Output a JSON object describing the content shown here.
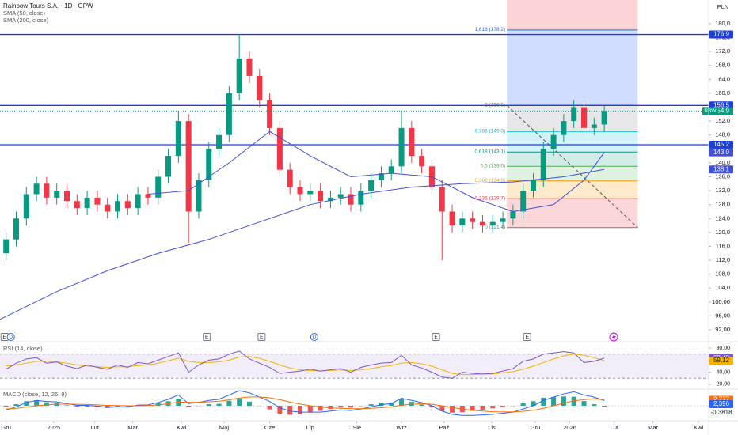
{
  "header": {
    "title": "Rainbow Tours S.A. · 1D · GPW",
    "indicators": [
      "SMA (50, close)",
      "SMA (200, close)"
    ],
    "currency": "PLN"
  },
  "chart_data": {
    "type": "candlestick",
    "up_color": "#089981",
    "down_color": "#f23645",
    "xlim": [
      -0.6,
      69.3
    ],
    "ylim": [
      88.6,
      186.8
    ],
    "x": [
      0,
      1,
      2,
      3,
      4,
      5,
      6,
      7,
      8,
      9,
      10,
      11,
      12,
      13,
      14,
      15,
      16,
      17,
      18,
      19,
      20,
      21,
      22,
      23,
      24,
      25,
      26,
      27,
      28,
      29,
      30,
      31,
      32,
      33,
      34,
      35,
      36,
      37,
      38,
      39,
      40,
      41,
      42,
      43,
      44,
      45,
      46,
      47,
      48,
      49,
      50,
      51,
      52,
      53,
      54,
      55,
      56,
      57,
      58,
      59
    ],
    "open": [
      114,
      118,
      124,
      131,
      134,
      130,
      132,
      129,
      127,
      130,
      128,
      126,
      129,
      127,
      131,
      130,
      136,
      142,
      152,
      126,
      135,
      144,
      148,
      160,
      170,
      165,
      158,
      150,
      138,
      133,
      131,
      132,
      129,
      130,
      131,
      128,
      132,
      135,
      137,
      139,
      150,
      142,
      139,
      133,
      126,
      122,
      124,
      123,
      122,
      123,
      124,
      126,
      132,
      135,
      144,
      148,
      152,
      156,
      150,
      151
    ],
    "high": [
      120,
      126,
      133,
      136,
      136,
      134,
      134,
      131,
      132,
      132,
      130,
      131,
      131,
      133,
      133,
      138,
      144,
      155,
      154,
      137,
      146,
      150,
      162,
      177,
      172,
      167,
      160,
      152,
      140,
      135,
      134,
      134,
      132,
      133,
      133,
      134,
      137,
      139,
      141,
      155,
      152,
      144,
      141,
      135,
      128,
      126,
      126,
      125,
      125,
      126,
      128,
      134,
      137,
      146,
      150,
      154,
      158,
      158,
      153,
      156.5
    ],
    "low": [
      112,
      116,
      122,
      129,
      128,
      128,
      127,
      125,
      125,
      126,
      124,
      124,
      125,
      125,
      128,
      128,
      134,
      140,
      117,
      124,
      133,
      142,
      146,
      158,
      163,
      156,
      148,
      136,
      131,
      129,
      129,
      127,
      127,
      128,
      126,
      126,
      130,
      133,
      135,
      137,
      140,
      137,
      131,
      112,
      120,
      120,
      121,
      120,
      120,
      121,
      122,
      124,
      130,
      133,
      142,
      146,
      150,
      148,
      148,
      149
    ],
    "close": [
      118,
      124,
      131,
      134,
      130,
      132,
      129,
      127,
      130,
      128,
      126,
      129,
      127,
      131,
      130,
      136,
      142,
      152,
      126,
      135,
      144,
      148,
      160,
      170,
      165,
      158,
      150,
      138,
      133,
      131,
      132,
      129,
      130,
      131,
      128,
      132,
      135,
      137,
      139,
      150,
      142,
      139,
      133,
      126,
      122,
      124,
      123,
      122,
      123,
      124,
      126,
      132,
      135,
      144,
      148,
      152,
      156,
      150,
      151,
      154.9
    ],
    "last": {
      "value": 154.9,
      "label": "154,9",
      "ticker": "RBW",
      "color": "#089981"
    },
    "yticks": [
      {
        "value": 180,
        "label": "180,0"
      },
      {
        "value": 176,
        "label": "176,0"
      },
      {
        "value": 172,
        "label": "172,0"
      },
      {
        "value": 168,
        "label": "168,0"
      },
      {
        "value": 164,
        "label": "164,0"
      },
      {
        "value": 160,
        "label": "160,0"
      },
      {
        "value": 156,
        "label": "156,0"
      },
      {
        "value": 152,
        "label": "152,0"
      },
      {
        "value": 148,
        "label": "148,0"
      },
      {
        "value": 144,
        "label": "144,0"
      },
      {
        "value": 140,
        "label": "140,0"
      },
      {
        "value": 136,
        "label": "136,0"
      },
      {
        "value": 132,
        "label": "132,0"
      },
      {
        "value": 128,
        "label": "128,0"
      },
      {
        "value": 124,
        "label": "124,0"
      },
      {
        "value": 120,
        "label": "120,0"
      },
      {
        "value": 116,
        "label": "116,0"
      },
      {
        "value": 112,
        "label": "112,0"
      },
      {
        "value": 108,
        "label": "108,0"
      },
      {
        "value": 104,
        "label": "104,0"
      },
      {
        "value": 100,
        "label": "100,00"
      },
      {
        "value": 96,
        "label": "96,00"
      },
      {
        "value": 92,
        "label": "92,00"
      }
    ],
    "xticks": [
      {
        "value": 0,
        "label": "Gru"
      },
      {
        "value": 4.7,
        "label": "2025"
      },
      {
        "value": 8.75,
        "label": "Lut"
      },
      {
        "value": 12.5,
        "label": "Mar"
      },
      {
        "value": 17.3,
        "label": "Kwi"
      },
      {
        "value": 21.5,
        "label": "Maj"
      },
      {
        "value": 26,
        "label": "Cze"
      },
      {
        "value": 30,
        "label": "Lip"
      },
      {
        "value": 34.6,
        "label": "Sie"
      },
      {
        "value": 39,
        "label": "Wrz"
      },
      {
        "value": 43.2,
        "label": "Paź"
      },
      {
        "value": 47.9,
        "label": "Lis"
      },
      {
        "value": 52.2,
        "label": "Gru"
      },
      {
        "value": 55.6,
        "label": "2026"
      },
      {
        "value": 60,
        "label": "Lut"
      },
      {
        "value": 63.8,
        "label": "Mar"
      },
      {
        "value": 68.3,
        "label": "Kwi"
      }
    ],
    "series": [
      {
        "name": "SMA (50, close)",
        "color": "#3f51d8",
        "x": [
          14,
          18,
          22,
          26,
          30,
          34,
          38,
          42,
          46,
          50,
          54,
          57,
          59
        ],
        "values": [
          131,
          132,
          140,
          149,
          142,
          136,
          137,
          136,
          130,
          126,
          128,
          135,
          143.0
        ],
        "last_label": "143,0"
      },
      {
        "name": "SMA (200, close)",
        "color": "#3f51d8",
        "x": [
          -0.6,
          5,
          10,
          15,
          20,
          25,
          30,
          35,
          40,
          45,
          50,
          55,
          59
        ],
        "values": [
          95,
          103,
          109,
          114,
          118,
          123,
          128,
          131,
          133,
          134,
          134.5,
          136,
          138.1
        ],
        "last_label": "138,1"
      }
    ],
    "hlines": [
      {
        "value": 176.9,
        "label": "176,9"
      },
      {
        "value": 156.5,
        "label": "156,5"
      },
      {
        "value": 145.2,
        "label": "145,2"
      }
    ],
    "hline_color": "#1e3fd6",
    "fib": {
      "start": 49.4,
      "end": 62.3,
      "top_fill": "rgba(242,54,69,0.22)",
      "levels": [
        {
          "value": 178.2,
          "label": "1,618 (178,2)",
          "color": "#2962ff",
          "fill": "rgba(41,98,255,0.22)"
        },
        {
          "value": 156.5,
          "label": "1 (156,5)",
          "color": "#787b86",
          "fill": "rgba(120,123,134,0.18)"
        },
        {
          "value": 149.0,
          "label": "0,786 (149,0)",
          "color": "#00bcd4",
          "fill": "rgba(0,188,212,0.18)"
        },
        {
          "value": 143.1,
          "label": "0,618 (143,1)",
          "color": "#089981",
          "fill": "rgba(8,153,129,0.18)"
        },
        {
          "value": 139.0,
          "label": "0,5 (139,0)",
          "color": "#4caf50",
          "fill": "rgba(76,175,80,0.18)"
        },
        {
          "value": 134.8,
          "label": "0,382 (134,8)",
          "color": "#ff9800",
          "fill": "rgba(255,152,0,0.2)"
        },
        {
          "value": 129.7,
          "label": "0,236 (129,7)",
          "color": "#f23645",
          "fill": "rgba(242,54,69,0.2)"
        },
        {
          "value": 121.4,
          "label": "0 (121,4)",
          "color": "#787b86",
          "fill": "none"
        }
      ]
    },
    "events": [
      {
        "x": -0.15,
        "label": "E"
      },
      {
        "x": 0.47,
        "label": "D"
      },
      {
        "x": 19.8,
        "label": "E"
      },
      {
        "x": 25.2,
        "label": "E"
      },
      {
        "x": 30.4,
        "label": "D"
      },
      {
        "x": 42.4,
        "label": "E"
      },
      {
        "x": 51.4,
        "label": "E"
      }
    ],
    "rsi": {
      "title": "RSI (14, close)",
      "ylim": [
        12,
        88
      ],
      "band": [
        30,
        70
      ],
      "yticks": [
        {
          "value": 80,
          "label": "80,00"
        },
        {
          "value": 60,
          "label": "60,00"
        },
        {
          "value": 40,
          "label": "40,00"
        },
        {
          "value": 20,
          "label": "20,00"
        }
      ],
      "series": [
        {
          "name": "RSI",
          "color": "#7e57c2",
          "last_label": "63,43",
          "values": [
            45,
            55,
            62,
            64,
            55,
            57,
            50,
            46,
            52,
            48,
            45,
            52,
            48,
            56,
            54,
            60,
            66,
            72,
            40,
            52,
            60,
            62,
            70,
            75,
            62,
            55,
            48,
            38,
            40,
            42,
            45,
            42,
            44,
            46,
            40,
            48,
            52,
            55,
            56,
            68,
            52,
            47,
            40,
            32,
            30,
            40,
            38,
            37,
            38,
            42,
            46,
            58,
            62,
            70,
            72,
            74,
            72,
            56,
            58,
            63.43
          ]
        },
        {
          "name": "RSI MA",
          "color": "#f5b400",
          "last_label": "59,12",
          "values": [
            50,
            52,
            55,
            58,
            58,
            57,
            55,
            52,
            50,
            49,
            48,
            49,
            49,
            51,
            52,
            55,
            59,
            63,
            58,
            56,
            56,
            57,
            60,
            65,
            66,
            63,
            58,
            52,
            47,
            44,
            43,
            42,
            43,
            44,
            43,
            44,
            46,
            49,
            51,
            55,
            56,
            54,
            50,
            44,
            38,
            36,
            36,
            37,
            37,
            39,
            41,
            45,
            50,
            56,
            62,
            67,
            70,
            68,
            64,
            59.12
          ]
        }
      ]
    },
    "macd": {
      "title": "MACD (close, 12, 26, 9)",
      "ylim": [
        -7,
        7
      ],
      "histogram": {
        "up_color": "#26a69a",
        "down_color": "#ef5350",
        "last_label": "-0,3818",
        "values": [
          -0.5,
          0.7,
          2.1,
          2.5,
          1.6,
          1.1,
          0.2,
          -0.5,
          -0.4,
          -0.6,
          -1,
          -0.6,
          -0.6,
          0.3,
          0.3,
          1.1,
          2.1,
          3.3,
          -0.6,
          -0.1,
          0.7,
          0.9,
          2.3,
          3.4,
          1.9,
          -0.1,
          -1.7,
          -3.8,
          -4.2,
          -3.8,
          -3,
          -2.4,
          -1.5,
          -0.8,
          -0.8,
          -0.1,
          0.7,
          1.4,
          1.5,
          3.2,
          1.8,
          0.6,
          -0.7,
          -2.5,
          -3.2,
          -3,
          -2.4,
          -1.8,
          -1.2,
          -0.6,
          -0.1,
          1.1,
          2.1,
          3.7,
          4,
          4.3,
          4.2,
          2.2,
          0.7,
          -0.3818
        ]
      },
      "series": [
        {
          "name": "MACD",
          "color": "#2962ff",
          "last_label": "2,396",
          "values": [
            -2,
            -0.5,
            1.5,
            2.5,
            2,
            1.8,
            1,
            0.2,
            0.2,
            -0.2,
            -0.8,
            -0.5,
            -0.6,
            0.3,
            0.4,
            1.5,
            3,
            5,
            1,
            1.5,
            2.5,
            3,
            5,
            7,
            6,
            4,
            2,
            -1,
            -2.5,
            -3,
            -3,
            -3,
            -2.5,
            -2,
            -2.2,
            -1.5,
            -0.5,
            0.5,
            1,
            3.5,
            2.5,
            1.5,
            0,
            -2.5,
            -4,
            -4.5,
            -4.5,
            -4.3,
            -4,
            -3.5,
            -3,
            -1.5,
            0,
            2.5,
            4,
            5.5,
            6.5,
            5,
            4,
            2.396
          ]
        },
        {
          "name": "Signal",
          "color": "#ff6d00",
          "last_label": "2,777",
          "values": [
            -1.5,
            -1.2,
            -0.6,
            0,
            0.4,
            0.7,
            0.8,
            0.7,
            0.6,
            0.4,
            0.2,
            0.1,
            0,
            0,
            0.1,
            0.4,
            0.9,
            1.7,
            1.6,
            1.6,
            1.8,
            2.1,
            2.7,
            3.6,
            4.1,
            4.1,
            3.7,
            2.8,
            1.7,
            0.8,
            0,
            -0.6,
            -1,
            -1.2,
            -1.4,
            -1.4,
            -1.2,
            -0.9,
            -0.5,
            0.3,
            0.7,
            0.9,
            0.7,
            0,
            -0.8,
            -1.5,
            -2.1,
            -2.5,
            -2.8,
            -2.9,
            -2.9,
            -2.6,
            -2.1,
            -1.2,
            0,
            1.2,
            2.3,
            2.8,
            3.3,
            2.777
          ]
        }
      ]
    }
  }
}
